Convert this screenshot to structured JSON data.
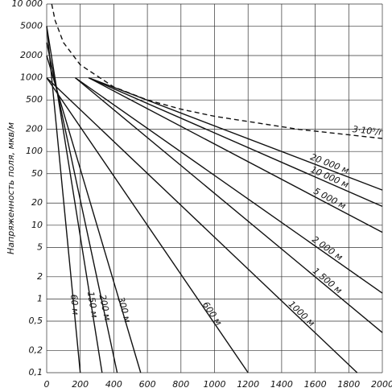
{
  "chart_data": {
    "type": "line",
    "y_label": "Напряженность поля, мкв/м",
    "xlim": [
      0,
      2000
    ],
    "ylim": [
      0.1,
      10000
    ],
    "log_y": true,
    "grid": true,
    "xticks": [
      0,
      200,
      400,
      600,
      800,
      1000,
      1200,
      1400,
      1600,
      1800,
      2000
    ],
    "yticks": [
      {
        "value": 10000,
        "label": "10 000"
      },
      5000,
      2000,
      1000,
      500,
      200,
      100,
      50,
      20,
      10,
      5,
      2,
      1,
      {
        "value": 0.5,
        "label": "0,5"
      },
      {
        "value": 0.2,
        "label": "0,2"
      },
      {
        "value": 0.1,
        "label": "0,1"
      }
    ],
    "series": [
      {
        "name": "60 м",
        "color": "#111",
        "line_style": "solid",
        "x": [
          0,
          200
        ],
        "values": [
          5000,
          0.1
        ]
      },
      {
        "name": "150 м",
        "color": "#111",
        "line_style": "solid",
        "x": [
          0,
          330
        ],
        "values": [
          5000,
          0.1
        ]
      },
      {
        "name": "200 м",
        "color": "#111",
        "line_style": "solid",
        "x": [
          0,
          420
        ],
        "values": [
          3000,
          0.1
        ]
      },
      {
        "name": "300 м",
        "color": "#111",
        "line_style": "solid",
        "x": [
          0,
          560
        ],
        "values": [
          2000,
          0.1
        ]
      },
      {
        "name": "600 м",
        "color": "#111",
        "line_style": "solid",
        "x": [
          0,
          1200
        ],
        "values": [
          1000,
          0.1
        ]
      },
      {
        "name": "1000 м",
        "color": "#111",
        "line_style": "solid",
        "x": [
          0,
          1850
        ],
        "values": [
          1000,
          0.1
        ]
      },
      {
        "name": "1 500 м",
        "color": "#111",
        "line_style": "solid",
        "x": [
          170,
          2000
        ],
        "values": [
          1000,
          0.35
        ]
      },
      {
        "name": "2 000 м",
        "color": "#111",
        "line_style": "solid",
        "x": [
          170,
          2000
        ],
        "values": [
          1000,
          1.2
        ]
      },
      {
        "name": "5 000 м",
        "color": "#111",
        "line_style": "solid",
        "x": [
          250,
          2000
        ],
        "values": [
          1000,
          8
        ]
      },
      {
        "name": "10 000 м",
        "color": "#111",
        "line_style": "solid",
        "x": [
          250,
          2000
        ],
        "values": [
          1000,
          18
        ]
      },
      {
        "name": "20 000 м",
        "color": "#111",
        "line_style": "solid",
        "x": [
          250,
          2000
        ],
        "values": [
          1000,
          30
        ]
      },
      {
        "name": "3·10⁵/r",
        "color": "#111",
        "line_style": "dashed",
        "x": [
          30,
          50,
          100,
          200,
          400,
          600,
          800,
          1000,
          1500,
          2000
        ],
        "values": [
          10000,
          6000,
          3000,
          1500,
          750,
          500,
          375,
          300,
          200,
          150
        ]
      }
    ]
  }
}
